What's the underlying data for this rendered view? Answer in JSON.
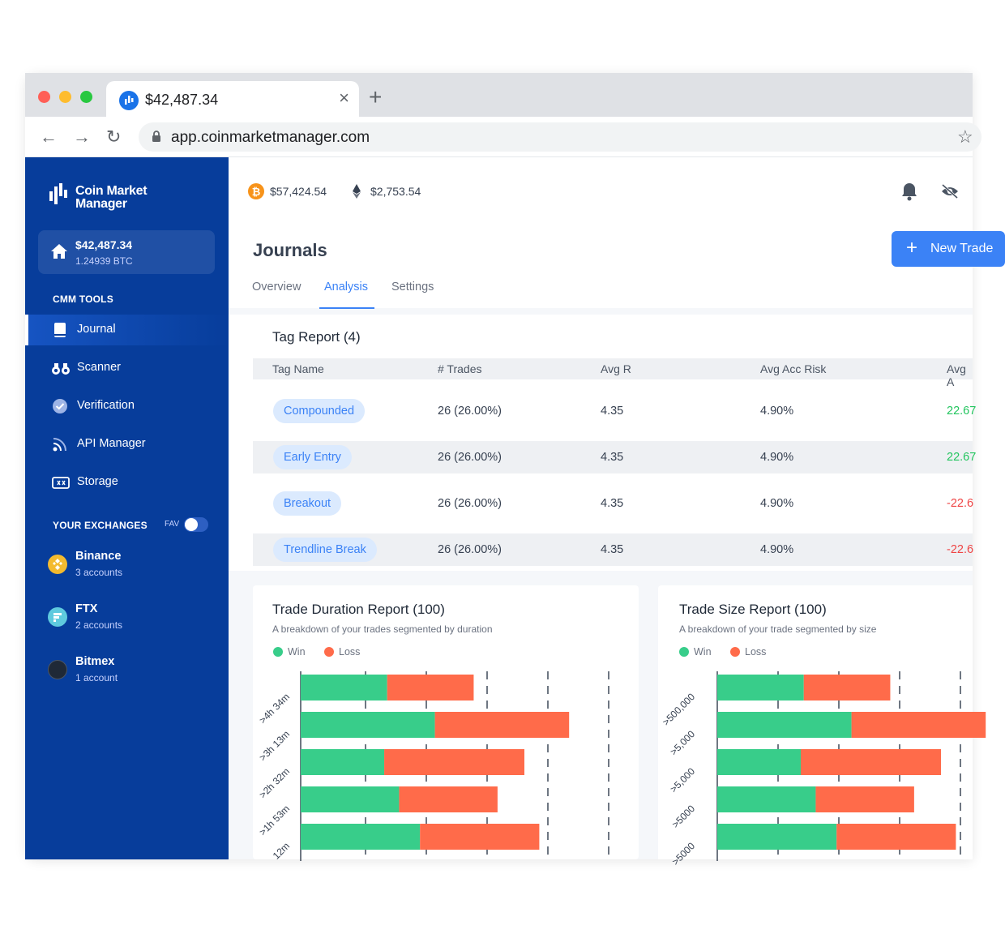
{
  "browser": {
    "tab_title": "$42,487.34",
    "url": "app.coinmarketmanager.com"
  },
  "sidebar": {
    "logo_line1": "Coin Market",
    "logo_line2": "Manager",
    "wallet": {
      "amount": "$42,487.34",
      "btc": "1.24939 BTC"
    },
    "tools_title": "CMM TOOLS",
    "items": [
      {
        "label": "Journal",
        "icon": "book-icon"
      },
      {
        "label": "Scanner",
        "icon": "binoculars-icon"
      },
      {
        "label": "Verification",
        "icon": "check-circle-icon"
      },
      {
        "label": "API Manager",
        "icon": "rss-icon"
      },
      {
        "label": "Storage",
        "icon": "storage-icon"
      }
    ],
    "exchanges_title": "YOUR EXCHANGES",
    "fav_label": "FAV",
    "exchanges": [
      {
        "name": "Binance",
        "accounts": "3 accounts",
        "color": "#f3ba2f"
      },
      {
        "name": "FTX",
        "accounts": "2 accounts",
        "color": "#5fcade"
      },
      {
        "name": "Bitmex",
        "accounts": "1 account",
        "color": "#1f2937"
      }
    ]
  },
  "header": {
    "btc_price": "$57,424.54",
    "eth_price": "$2,753.54",
    "page_title": "Journals",
    "new_button": "New Trade",
    "tabs": [
      "Overview",
      "Analysis",
      "Settings"
    ]
  },
  "tag_report": {
    "title": "Tag Report (4)",
    "columns": [
      "Tag Name",
      "# Trades",
      "Avg R",
      "Avg Acc Risk",
      "Avg A"
    ],
    "rows": [
      {
        "tag": "Compounded",
        "trades": "26 (26.00%)",
        "avg_r": "4.35",
        "risk": "4.90%",
        "avg": "22.67"
      },
      {
        "tag": "Early Entry",
        "trades": "26 (26.00%)",
        "avg_r": "4.35",
        "risk": "4.90%",
        "avg": "22.67"
      },
      {
        "tag": "Breakout",
        "trades": "26 (26.00%)",
        "avg_r": "4.35",
        "risk": "4.90%",
        "avg": "-22.6"
      },
      {
        "tag": "Trendline Break",
        "trades": "26 (26.00%)",
        "avg_r": "4.35",
        "risk": "4.90%",
        "avg": "-22.6"
      }
    ]
  },
  "colors": {
    "win": "#38cd8a",
    "loss": "#ff6b4a",
    "accent": "#3b82f6",
    "sidebar": "#073d9b"
  },
  "duration_report": {
    "title": "Trade Duration Report (100)",
    "subtitle": "A breakdown of your trades segmented by duration",
    "legend": [
      "Win",
      "Loss"
    ]
  },
  "size_report": {
    "title": "Trade Size Report (100)",
    "subtitle": "A breakdown of your trade segmented by size",
    "legend": [
      "Win",
      "Loss"
    ]
  },
  "chart_data": [
    {
      "type": "bar",
      "orientation": "horizontal",
      "stacked": true,
      "categories": [
        ">4h 34m",
        ">3h 13m",
        ">2h 32m",
        ">1h 53m",
        "12m"
      ],
      "series": [
        {
          "name": "Win",
          "values": [
            29,
            45,
            28,
            33,
            40
          ]
        },
        {
          "name": "Loss",
          "values": [
            29,
            45,
            47,
            33,
            40
          ]
        }
      ],
      "grid": true
    },
    {
      "type": "bar",
      "orientation": "horizontal",
      "stacked": true,
      "categories": [
        ">500,000",
        ">5,000",
        ">5,000",
        ">5000",
        ">5000"
      ],
      "series": [
        {
          "name": "Win",
          "values": [
            29,
            45,
            28,
            33,
            40
          ]
        },
        {
          "name": "Loss",
          "values": [
            29,
            45,
            47,
            33,
            40
          ]
        }
      ],
      "grid": true
    }
  ]
}
